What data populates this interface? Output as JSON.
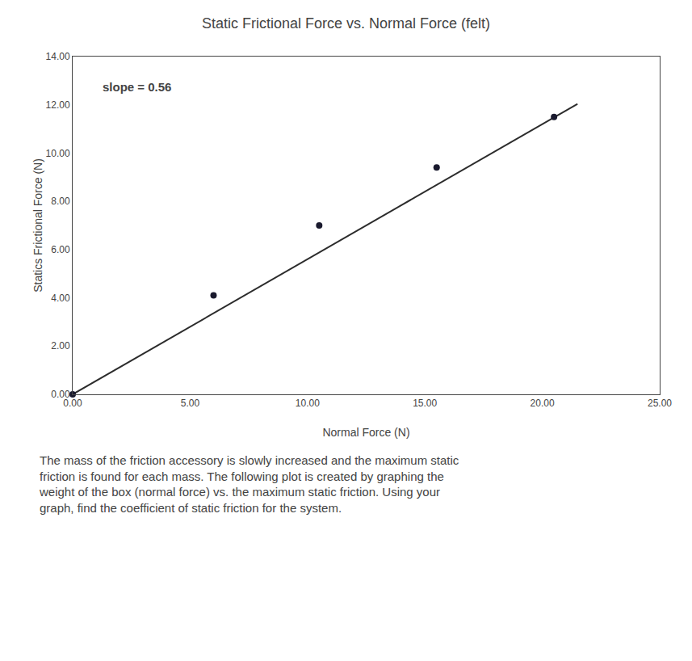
{
  "chart_data": {
    "type": "scatter",
    "title": "Static Frictional Force vs. Normal Force (felt)",
    "xlabel": "Normal Force (N)",
    "ylabel": "Statics Frictional Force (N)",
    "xlim": [
      0,
      25
    ],
    "ylim": [
      0,
      14
    ],
    "xticks": [
      {
        "value": 0,
        "label": "0.00"
      },
      {
        "value": 5,
        "label": "5.00"
      },
      {
        "value": 10,
        "label": "10.00"
      },
      {
        "value": 15,
        "label": "15.00"
      },
      {
        "value": 20,
        "label": "20.00"
      },
      {
        "value": 25,
        "label": "25.00"
      }
    ],
    "yticks": [
      {
        "value": 0,
        "label": "0.00"
      },
      {
        "value": 2,
        "label": "2.00"
      },
      {
        "value": 4,
        "label": "4.00"
      },
      {
        "value": 6,
        "label": "6.00"
      },
      {
        "value": 8,
        "label": "8.00"
      },
      {
        "value": 10,
        "label": "10.00"
      },
      {
        "value": 12,
        "label": "12.00"
      },
      {
        "value": 14,
        "label": "14.00"
      }
    ],
    "grid": false,
    "series": [
      {
        "type": "line",
        "color": "#2c2c2c",
        "x": [
          0.0,
          21.5
        ],
        "values": [
          0.0,
          12.04
        ]
      },
      {
        "type": "scatter",
        "color": "#1a1a2e",
        "x": [
          0.0,
          6.0,
          10.5,
          15.5,
          20.5
        ],
        "values": [
          0.0,
          4.1,
          7.0,
          9.4,
          11.5
        ]
      }
    ],
    "annotations": [
      {
        "text": "slope = 0.56",
        "x": 1.2,
        "y": 12.4
      }
    ],
    "caption": "The mass of the friction accessory is slowly increased and the maximum static\nfriction is found for each mass. The following plot is created by graphing the\nweight of the box (normal force) vs. the maximum static friction. Using your\ngraph, find the coefficient of static friction for the system."
  }
}
